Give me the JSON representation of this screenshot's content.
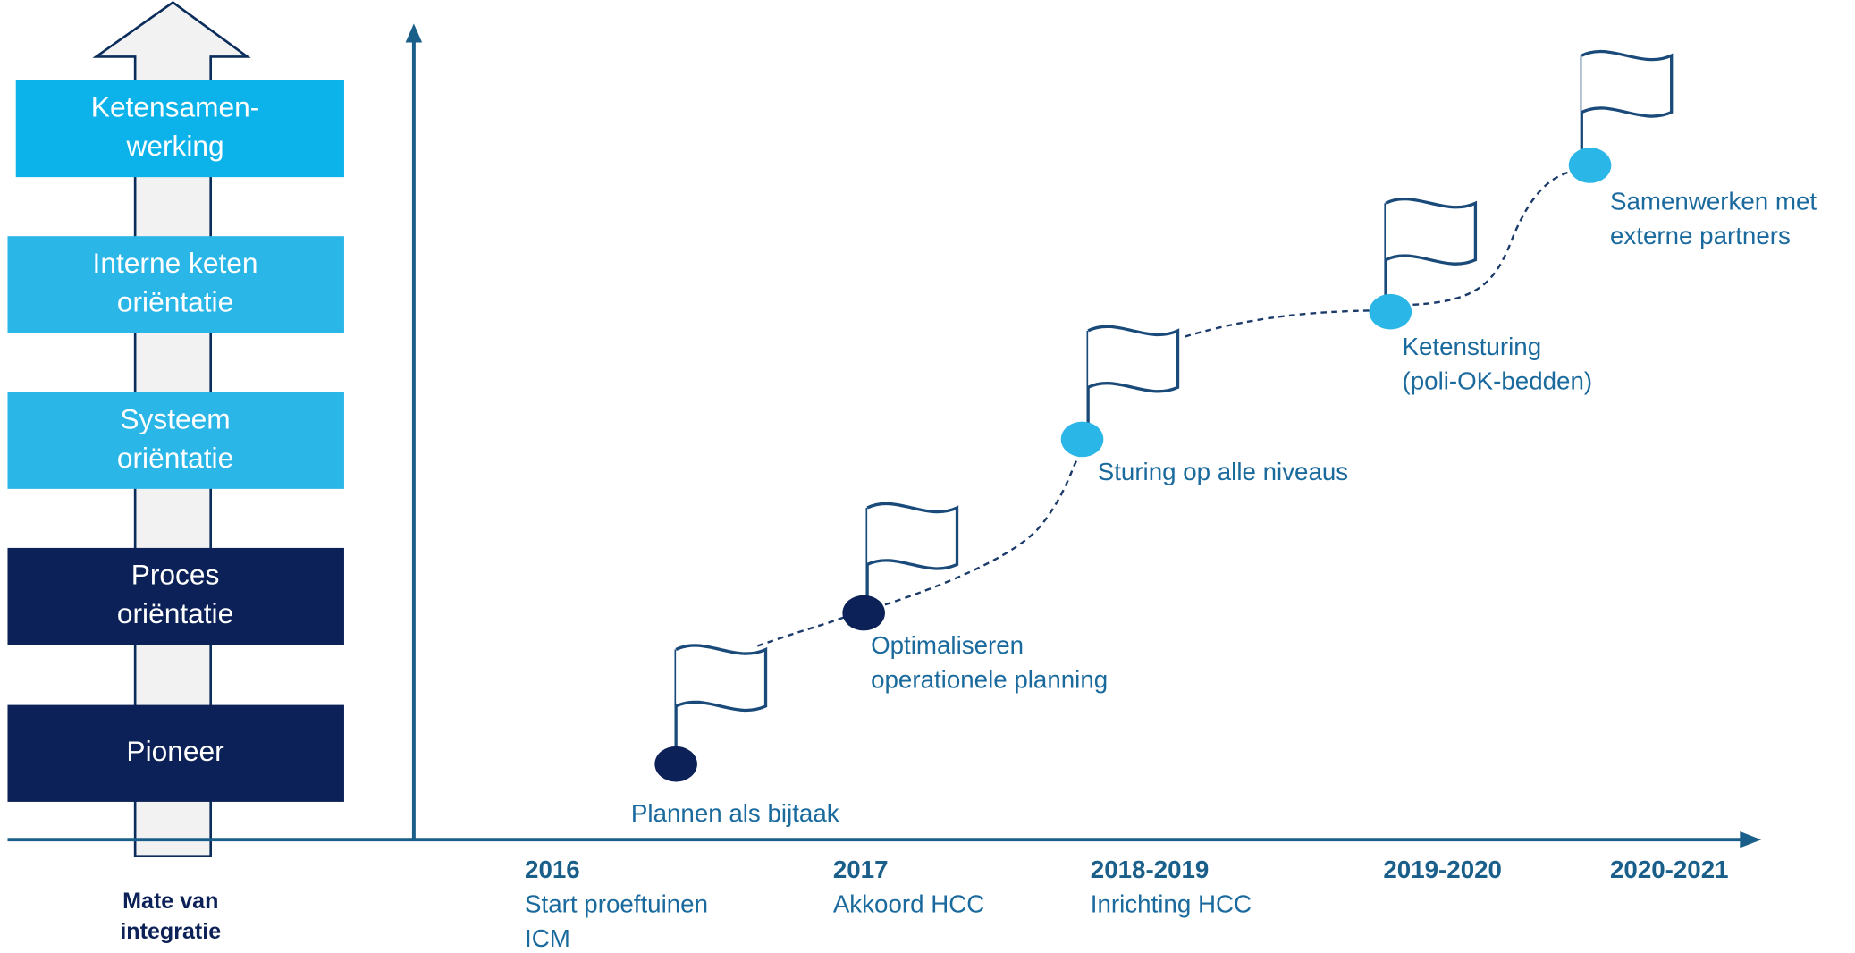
{
  "axis_label": [
    "Mate van",
    "integratie"
  ],
  "levels": [
    {
      "lines": [
        "Ketensamen-",
        "werking"
      ],
      "color": "#0cb3ea"
    },
    {
      "lines": [
        "Interne keten",
        "oriëntatie"
      ],
      "color": "#2bb6e8"
    },
    {
      "lines": [
        "Systeem",
        "oriëntatie"
      ],
      "color": "#2bb6e8"
    },
    {
      "lines": [
        "Proces",
        "oriëntatie"
      ],
      "color": "#0b2157"
    },
    {
      "lines": [
        "Pioneer"
      ],
      "color": "#0b2157"
    }
  ],
  "milestones": [
    {
      "lines": [
        "Plannen als bijtaak"
      ],
      "color": "#0b2157"
    },
    {
      "lines": [
        "Optimaliseren",
        "operationele planning"
      ],
      "color": "#0b2157"
    },
    {
      "lines": [
        "Sturing op alle niveaus"
      ],
      "color": "#2bb6e8"
    },
    {
      "lines": [
        "Ketensturing",
        "(poli-OK-bedden)"
      ],
      "color": "#2bb6e8"
    },
    {
      "lines": [
        "Samenwerken met",
        "externe partners"
      ],
      "color": "#2bb6e8"
    }
  ],
  "timeline": [
    {
      "year": "2016",
      "lines": [
        "Start proeftuinen",
        "ICM"
      ]
    },
    {
      "year": "2017",
      "lines": [
        "Akkoord HCC"
      ]
    },
    {
      "year": "2018-2019",
      "lines": [
        "Inrichting HCC"
      ]
    },
    {
      "year": "2019-2020",
      "lines": []
    },
    {
      "year": "2020-2021",
      "lines": []
    }
  ]
}
